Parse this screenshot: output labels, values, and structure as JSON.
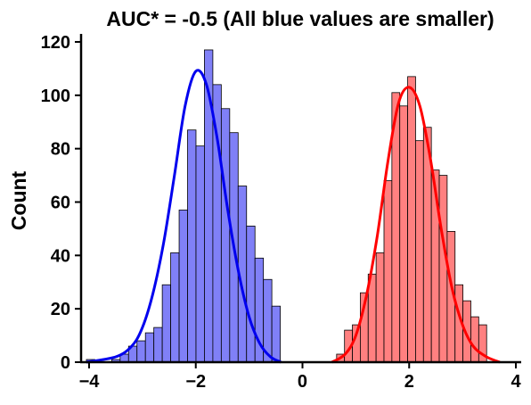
{
  "chart_data": {
    "type": "bar",
    "title": "AUC* = -0.5 (All blue values are smaller)",
    "xlabel": "",
    "ylabel": "Count",
    "xlim": [
      -4.15,
      4.1
    ],
    "ylim": [
      0,
      123
    ],
    "xticks": [
      -4,
      -2,
      0,
      2,
      4
    ],
    "xtick_labels": [
      "−4",
      "−2",
      "0",
      "2",
      "4"
    ],
    "yticks": [
      0,
      20,
      40,
      60,
      80,
      100,
      120
    ],
    "ytick_labels": [
      "0",
      "20",
      "40",
      "60",
      "80",
      "100",
      "120"
    ],
    "grid": false,
    "legend": "none",
    "series": [
      {
        "color": "#8080f7",
        "edge": "#000000",
        "kde_color": "#0000ee",
        "bin_width": 0.158,
        "bin_starts": [
          -4.05,
          -3.892,
          -3.734,
          -3.576,
          -3.418,
          -3.26,
          -3.102,
          -2.944,
          -2.786,
          -2.628,
          -2.47,
          -2.312,
          -2.154,
          -1.996,
          -1.838,
          -1.68,
          -1.522,
          -1.364,
          -1.206,
          -1.048,
          -0.89,
          -0.732,
          -0.574
        ],
        "counts": [
          1,
          0,
          0,
          1,
          3,
          6,
          8,
          11,
          13,
          29,
          41,
          57,
          87,
          81,
          117,
          104,
          95,
          86,
          66,
          51,
          39,
          31,
          21
        ],
        "kde_x": [
          -4.05,
          -3.5,
          -3.2,
          -3.0,
          -2.8,
          -2.6,
          -2.4,
          -2.2,
          -2.0,
          -1.8,
          -1.6,
          -1.4,
          -1.2,
          -1.0,
          -0.8,
          -0.6,
          -0.4
        ],
        "kde_y": [
          0,
          2,
          6,
          13,
          26,
          45,
          70,
          96,
          109,
          104,
          84,
          57,
          34,
          17,
          7,
          2,
          0
        ]
      },
      {
        "color": "#ff8080",
        "edge": "#000000",
        "kde_color": "#ff0000",
        "bin_width": 0.148,
        "bin_starts": [
          0.64,
          0.788,
          0.936,
          1.084,
          1.232,
          1.38,
          1.528,
          1.676,
          1.824,
          1.972,
          2.12,
          2.268,
          2.416,
          2.564,
          2.712,
          2.86,
          3.008,
          3.156,
          3.304
        ],
        "counts": [
          3,
          12,
          14,
          26,
          33,
          41,
          68,
          101,
          96,
          107,
          83,
          88,
          72,
          70,
          49,
          29,
          23,
          17,
          14
        ],
        "kde_x": [
          0.55,
          0.8,
          1.0,
          1.2,
          1.4,
          1.6,
          1.8,
          2.0,
          2.2,
          2.4,
          2.6,
          2.8,
          3.0,
          3.2,
          3.45,
          3.7
        ],
        "kde_y": [
          0,
          3,
          10,
          25,
          47,
          75,
          97,
          103,
          96,
          76,
          50,
          28,
          14,
          6,
          2,
          0
        ]
      }
    ]
  }
}
